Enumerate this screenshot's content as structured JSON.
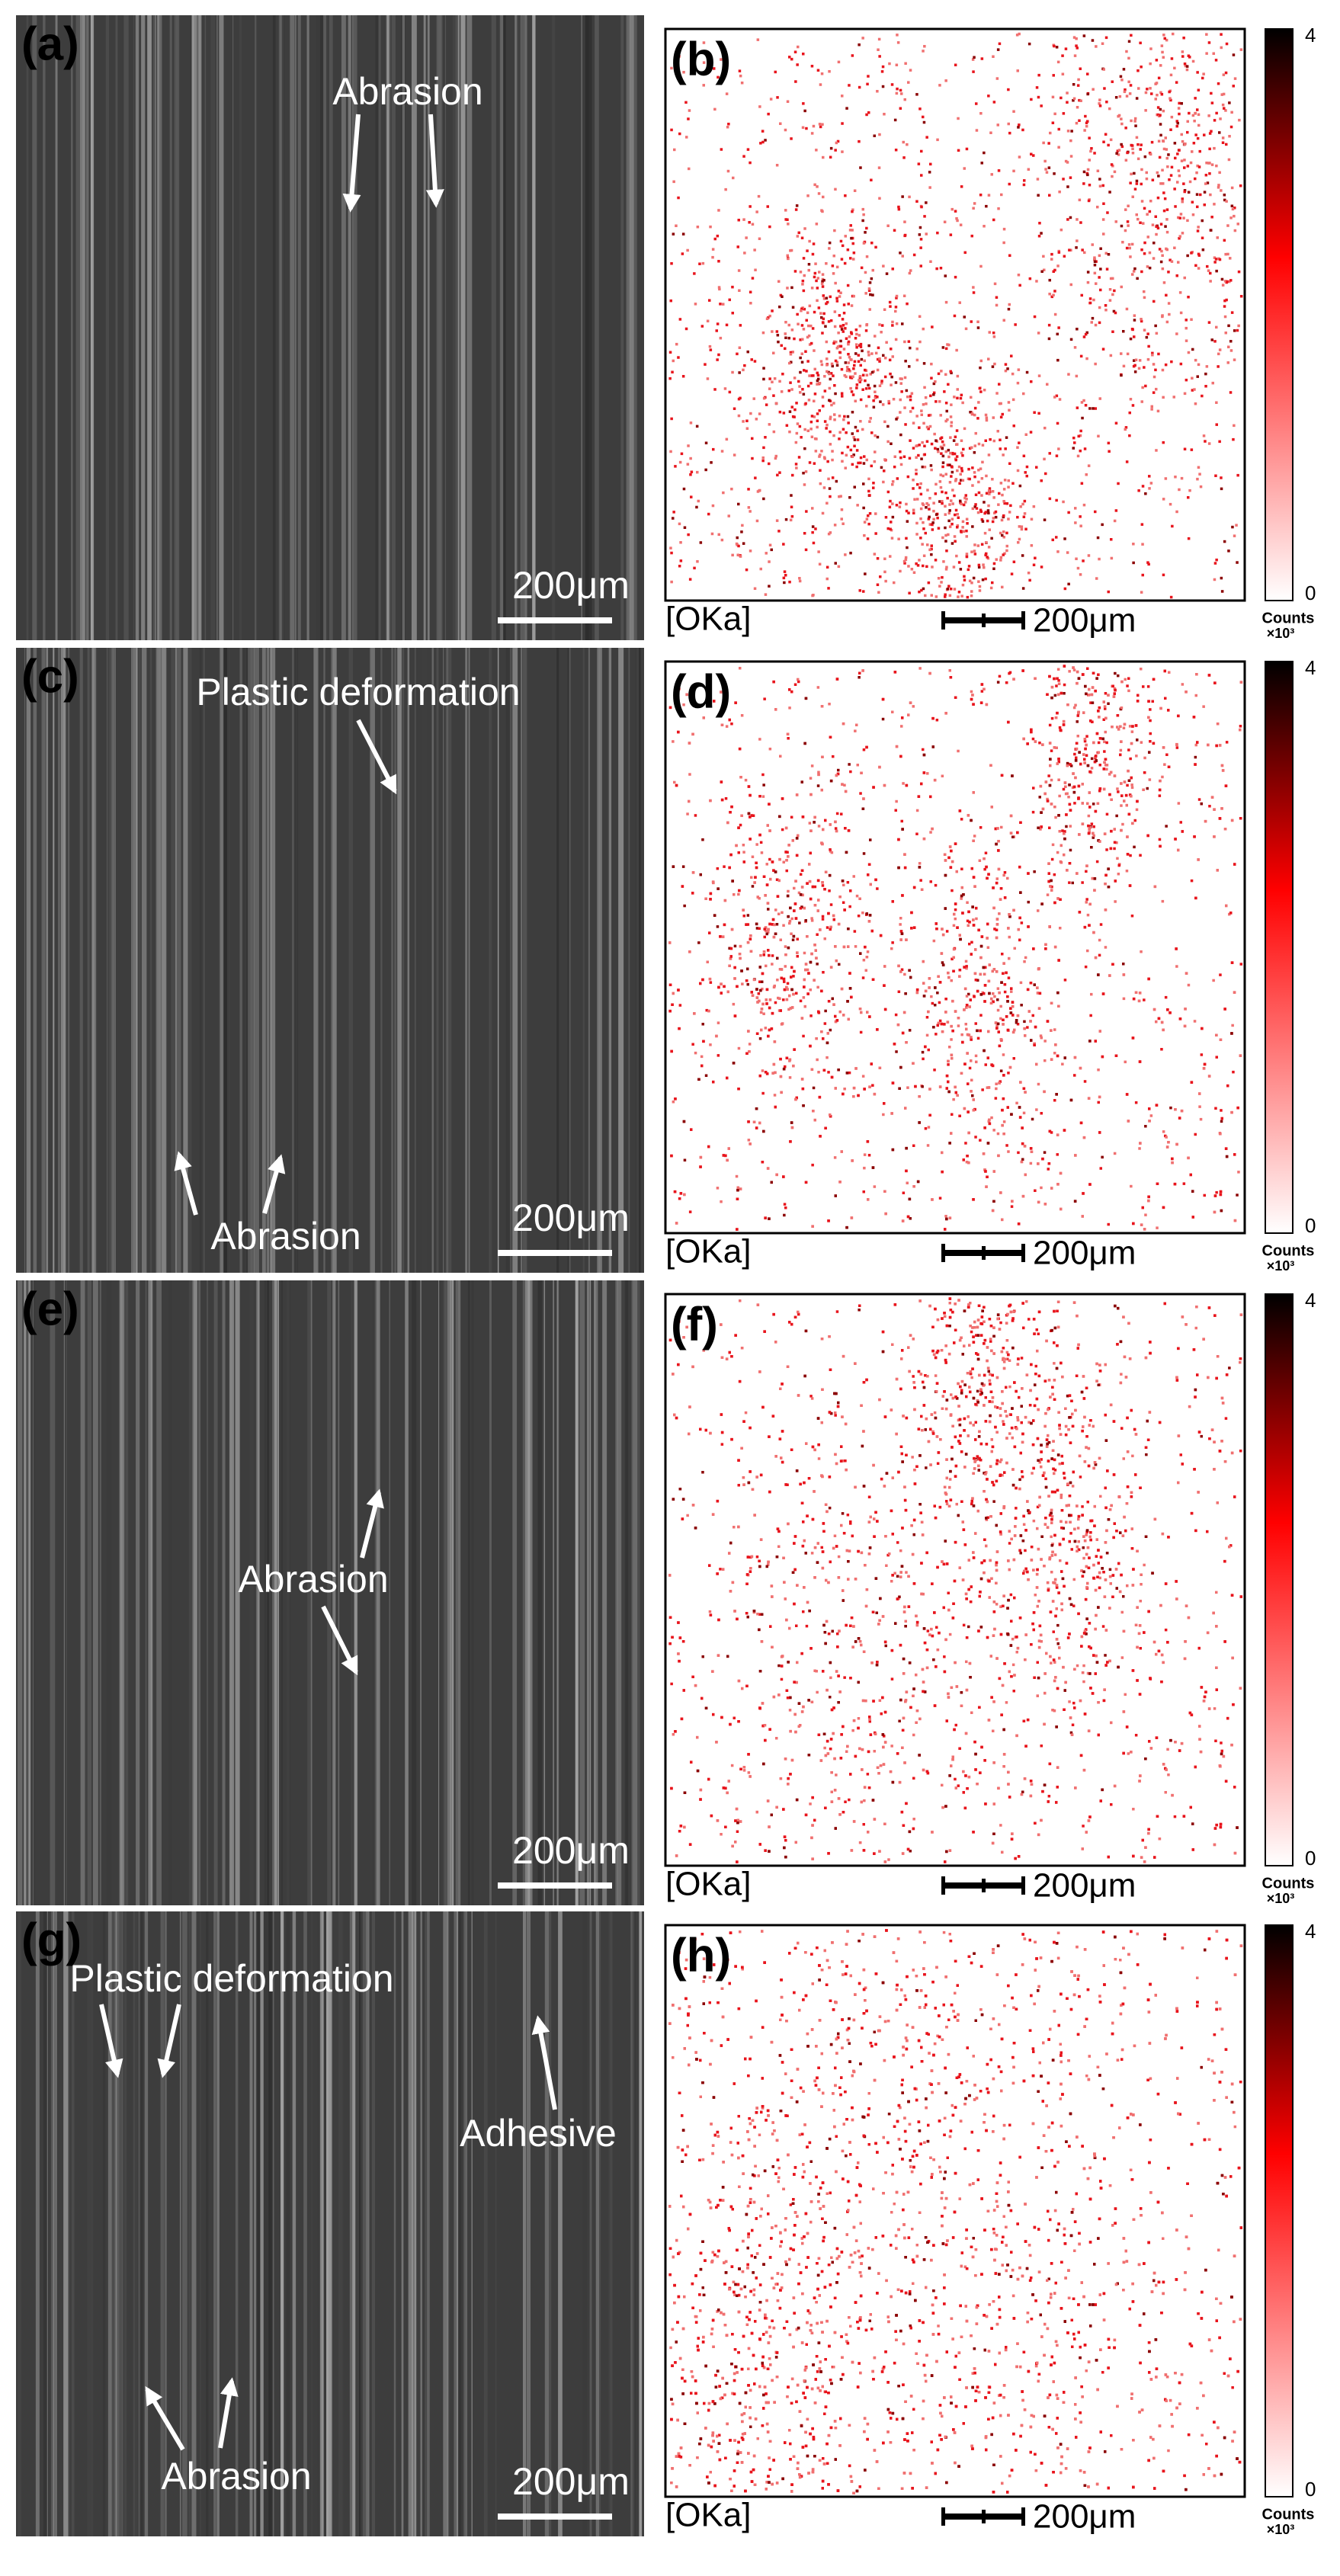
{
  "panels": [
    {
      "label": "(a)",
      "annotations": [
        "Abrasion"
      ],
      "scale_bar": "200μm"
    },
    {
      "label": "(b)",
      "element": "[OKa]",
      "scale_bar": "200μm",
      "colorbar": {
        "max": 4,
        "min": 0,
        "unit": "Counts",
        "multiplier": "×10³"
      }
    },
    {
      "label": "(c)",
      "annotations": [
        "Plastic deformation",
        "Abrasion"
      ],
      "scale_bar": "200μm"
    },
    {
      "label": "(d)",
      "element": "[OKa]",
      "scale_bar": "200μm",
      "colorbar": {
        "max": 4,
        "min": 0,
        "unit": "Counts",
        "multiplier": "×10³"
      }
    },
    {
      "label": "(e)",
      "annotations": [
        "Abrasion"
      ],
      "scale_bar": "200μm"
    },
    {
      "label": "(f)",
      "element": "[OKa]",
      "scale_bar": "200μm",
      "colorbar": {
        "max": 4,
        "min": 0,
        "unit": "Counts",
        "multiplier": "×10³"
      }
    },
    {
      "label": "(g)",
      "annotations": [
        "Plastic deformation",
        "Adhesive",
        "Abrasion"
      ],
      "scale_bar": "200μm"
    },
    {
      "label": "(h)",
      "element": "[OKa]",
      "scale_bar": "200μm",
      "colorbar": {
        "max": 4,
        "min": 0,
        "unit": "Counts",
        "multiplier": "×10³"
      }
    }
  ]
}
